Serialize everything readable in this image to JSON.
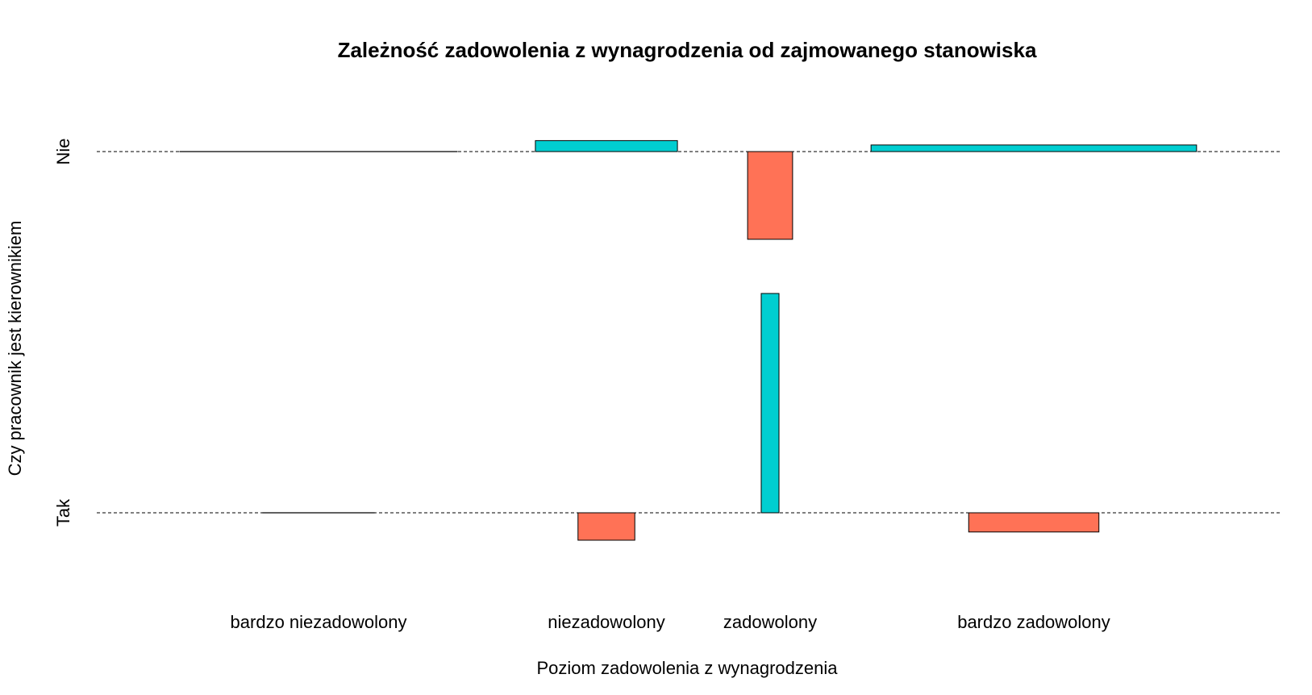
{
  "chart_data": {
    "type": "mosaic",
    "title": "Zależność zadowolenia z wynagrodzenia od zajmowanego stanowiska",
    "xlabel": "Poziom zadowolenia z wynagrodzenia",
    "ylabel": "Czy pracownik jest kierownikiem",
    "categories": [
      "bardzo niezadowolony",
      "niezadowolony",
      "zadowolony",
      "bardzo zadowolony"
    ],
    "rows": [
      "Nie",
      "Tak"
    ],
    "colors": {
      "positive": "#00CED1",
      "negative": "#FF7256",
      "baseline": "#000000"
    },
    "grid": true,
    "cells": [
      {
        "category": "bardzo niezadowolony",
        "row": "Nie",
        "residual": 0.0,
        "relative_width": 0.235
      },
      {
        "category": "niezadowolony",
        "row": "Nie",
        "residual": 0.2,
        "relative_width": 0.12
      },
      {
        "category": "zadowolony",
        "row": "Nie",
        "residual": -1.6,
        "relative_width": 0.038
      },
      {
        "category": "bardzo zadowolony",
        "row": "Nie",
        "residual": 0.12,
        "relative_width": 0.275
      },
      {
        "category": "bardzo niezadowolony",
        "row": "Tak",
        "residual": 0.0,
        "relative_width": 0.095
      },
      {
        "category": "niezadowolony",
        "row": "Tak",
        "residual": -0.5,
        "relative_width": 0.048
      },
      {
        "category": "zadowolony",
        "row": "Tak",
        "residual": 4.0,
        "relative_width": 0.015
      },
      {
        "category": "bardzo zadowolony",
        "row": "Tak",
        "residual": -0.35,
        "relative_width": 0.11
      }
    ]
  }
}
